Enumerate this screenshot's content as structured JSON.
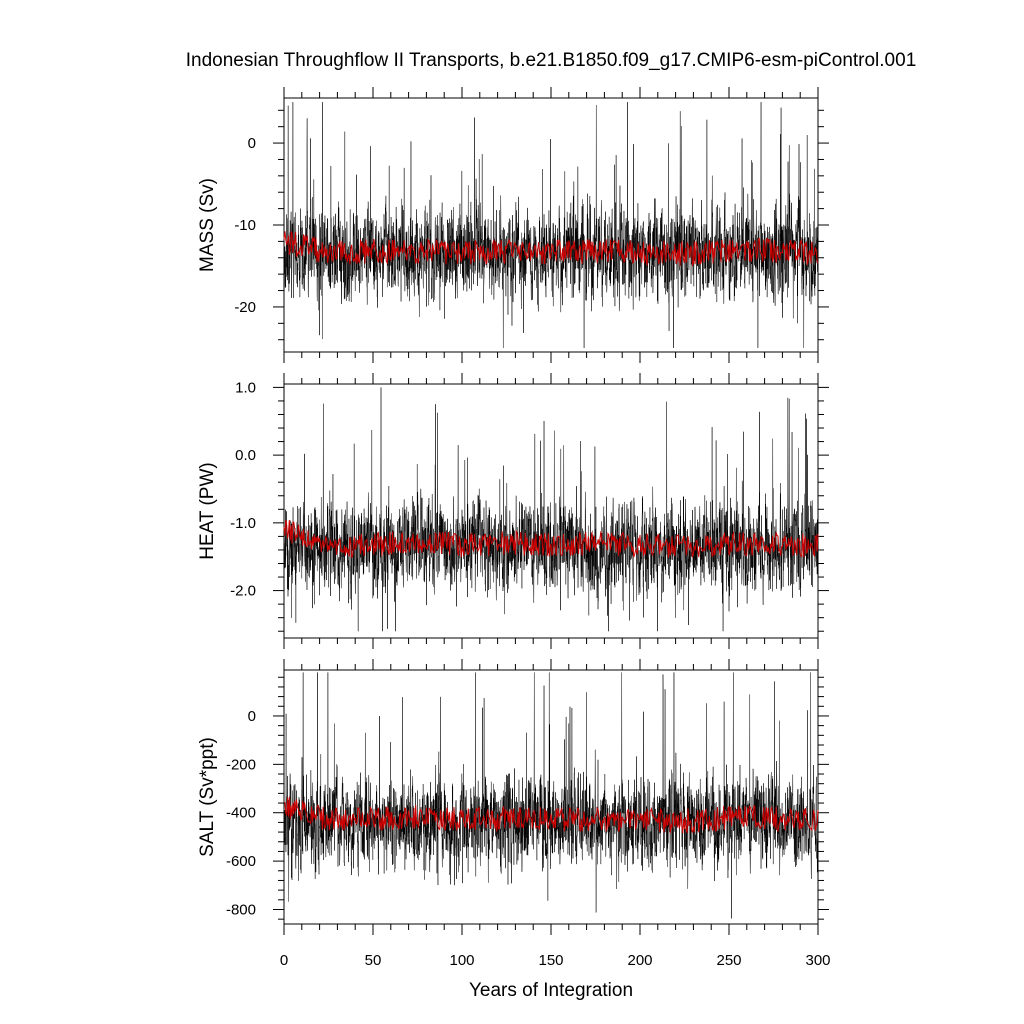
{
  "chart_data": {
    "type": "line",
    "title": "Indonesian Throughflow II Transports, b.e21.B1850.f09_g17.CMIP6-esm-piControl.001",
    "xlabel": "Years of Integration",
    "xlim": [
      0,
      300
    ],
    "xticks": [
      "0",
      "50",
      "100",
      "150",
      "200",
      "250",
      "300"
    ],
    "grid": false,
    "legend": "none",
    "series_colors": {
      "raw": "#000000",
      "running_mean": "#cc0000"
    },
    "panels": [
      {
        "ylabel": "MASS (Sv)",
        "ylim": [
          -25.5,
          5.5
        ],
        "yticks": [
          0,
          -10,
          -20
        ],
        "ytick_labels": [
          "0",
          "-10",
          "-20"
        ],
        "raw_summary": {
          "mean": -13.5,
          "spread": 3.4,
          "min": -25,
          "max": 5
        },
        "running_mean": {
          "x": [
            0,
            25,
            50,
            75,
            100,
            125,
            150,
            175,
            200,
            225,
            250,
            275,
            300
          ],
          "y": [
            -12.0,
            -13.4,
            -13.2,
            -13.2,
            -13.4,
            -13.2,
            -13.3,
            -13.2,
            -13.4,
            -13.5,
            -13.1,
            -13.2,
            -13.4
          ]
        }
      },
      {
        "ylabel": "HEAT (PW)",
        "ylim": [
          -2.7,
          1.05
        ],
        "yticks": [
          1.0,
          0.0,
          -1.0,
          -2.0
        ],
        "ytick_labels": [
          "1.0",
          "0.0",
          "-1.0",
          "-2.0"
        ],
        "raw_summary": {
          "mean": -1.35,
          "spread": 0.4,
          "min": -2.6,
          "max": 1.0
        },
        "running_mean": {
          "x": [
            0,
            25,
            50,
            75,
            100,
            125,
            150,
            175,
            200,
            225,
            250,
            275,
            300
          ],
          "y": [
            -1.1,
            -1.32,
            -1.33,
            -1.28,
            -1.33,
            -1.3,
            -1.32,
            -1.3,
            -1.33,
            -1.35,
            -1.3,
            -1.32,
            -1.34
          ]
        }
      },
      {
        "ylabel": "SALT (Sv*ppt)",
        "ylim": [
          -860,
          190
        ],
        "yticks": [
          0,
          -200,
          -400,
          -600,
          -800
        ],
        "ytick_labels": [
          "0",
          "-200",
          "-400",
          "-600",
          "-800"
        ],
        "raw_summary": {
          "mean": -440,
          "spread": 115,
          "min": -850,
          "max": 180
        },
        "running_mean": {
          "x": [
            0,
            25,
            50,
            75,
            100,
            125,
            150,
            175,
            200,
            225,
            250,
            275,
            300
          ],
          "y": [
            -370,
            -430,
            -425,
            -420,
            -430,
            -425,
            -428,
            -424,
            -432,
            -436,
            -420,
            -425,
            -430
          ]
        }
      }
    ]
  }
}
